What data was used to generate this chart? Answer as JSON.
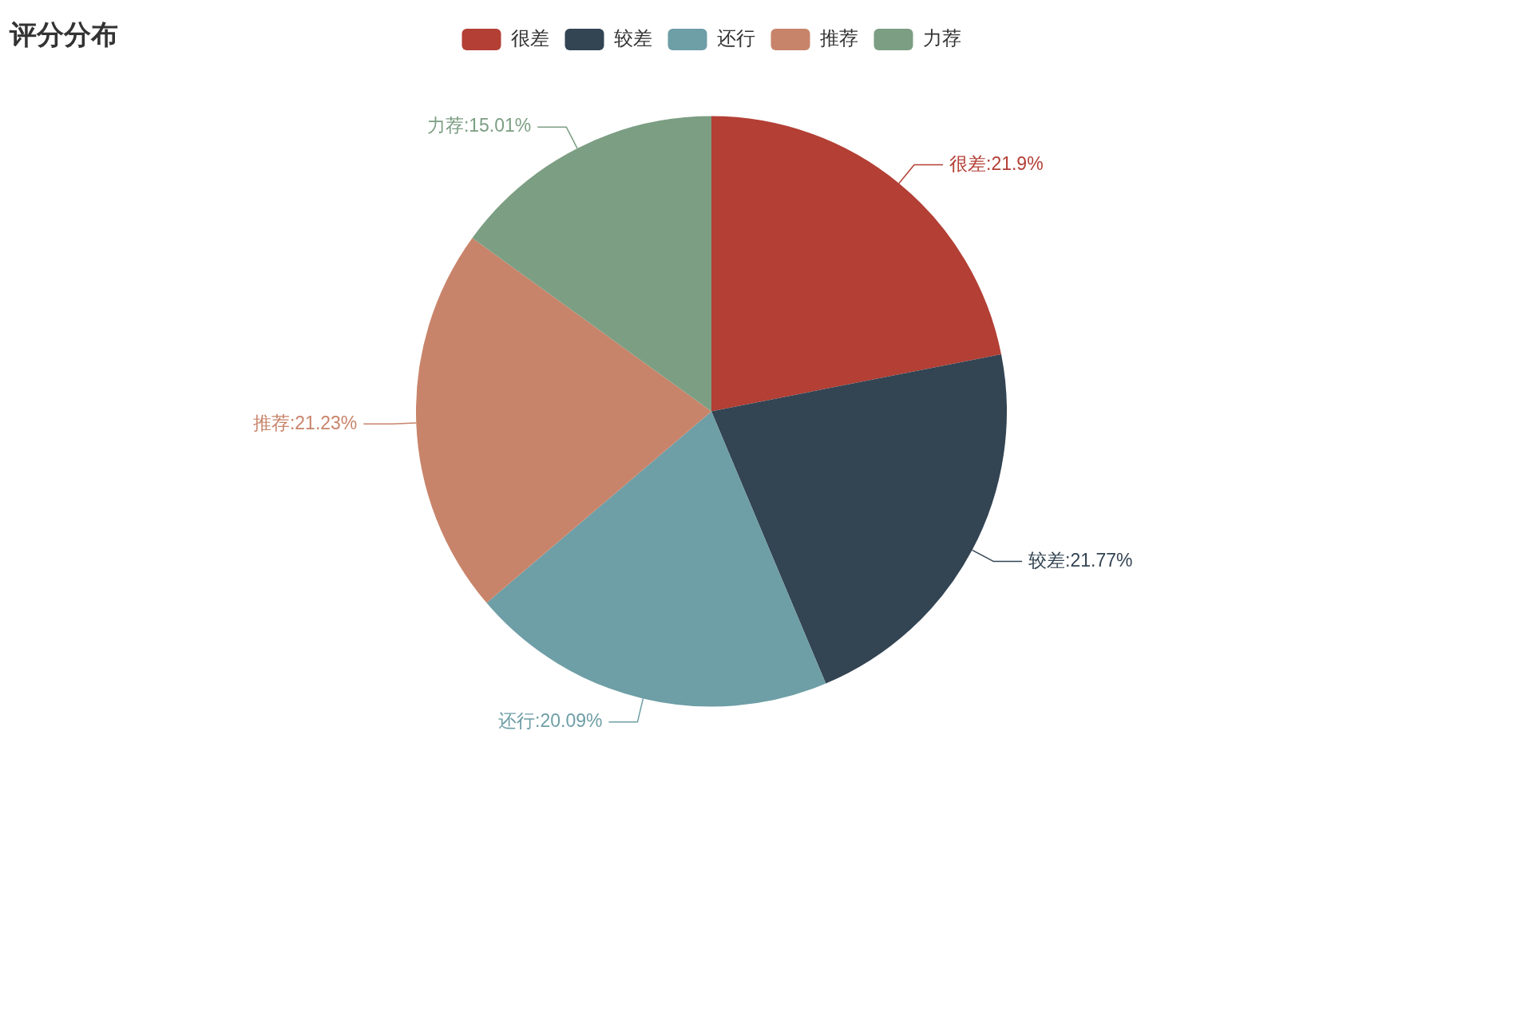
{
  "chart_data": {
    "type": "pie",
    "title": "评分分布",
    "categories": [
      "很差",
      "较差",
      "还行",
      "推荐",
      "力荐"
    ],
    "values": [
      21.9,
      21.77,
      20.09,
      21.23,
      15.01
    ],
    "colors": [
      "#b33f35",
      "#334453",
      "#6e9ea6",
      "#c8846a",
      "#7c9e83"
    ],
    "value_labels": [
      "很差:21.9%",
      "较差:21.77%",
      "还行:20.09%",
      "推荐:21.23%",
      "力荐:15.01%"
    ],
    "legend": "top"
  }
}
